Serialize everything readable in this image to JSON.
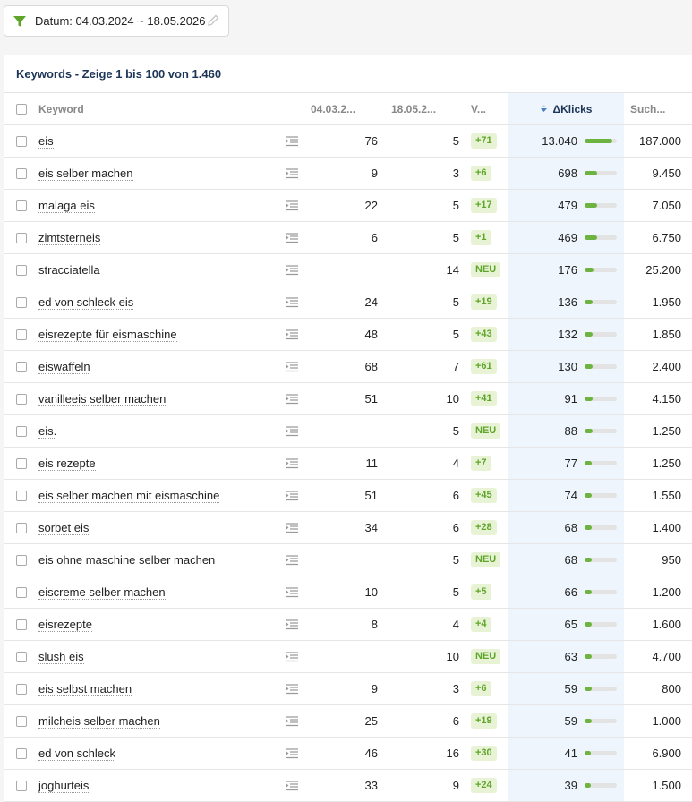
{
  "filter": {
    "label": "Datum: 04.03.2024 ~ 18.05.2026",
    "icon": "funnel-icon",
    "edit_icon": "pencil-icon",
    "accent": "#5fa52a"
  },
  "table_title": "Keywords - Zeige 1 bis 100 von 1.460",
  "columns": {
    "keyword": "Keyword",
    "date1": "04.03.2...",
    "date2": "18.05.2...",
    "change": "V...",
    "klicks": "ΔKlicks",
    "suchvolumen": "Such..."
  },
  "rows": [
    {
      "keyword": "eis",
      "d1": "76",
      "d2": "5",
      "change": "+71",
      "klicks": "13.040",
      "bar": 0.85,
      "sv": "187.000"
    },
    {
      "keyword": "eis selber machen",
      "d1": "9",
      "d2": "3",
      "change": "+6",
      "klicks": "698",
      "bar": 0.4,
      "sv": "9.450"
    },
    {
      "keyword": "malaga eis",
      "d1": "22",
      "d2": "5",
      "change": "+17",
      "klicks": "479",
      "bar": 0.38,
      "sv": "7.050"
    },
    {
      "keyword": "zimtsterneis",
      "d1": "6",
      "d2": "5",
      "change": "+1",
      "klicks": "469",
      "bar": 0.38,
      "sv": "6.750"
    },
    {
      "keyword": "stracciatella",
      "d1": "",
      "d2": "14",
      "change": "NEU",
      "klicks": "176",
      "bar": 0.28,
      "sv": "25.200"
    },
    {
      "keyword": "ed von schleck eis",
      "d1": "24",
      "d2": "5",
      "change": "+19",
      "klicks": "136",
      "bar": 0.26,
      "sv": "1.950"
    },
    {
      "keyword": "eisrezepte für eismaschine",
      "d1": "48",
      "d2": "5",
      "change": "+43",
      "klicks": "132",
      "bar": 0.26,
      "sv": "1.850"
    },
    {
      "keyword": "eiswaffeln",
      "d1": "68",
      "d2": "7",
      "change": "+61",
      "klicks": "130",
      "bar": 0.26,
      "sv": "2.400"
    },
    {
      "keyword": "vanilleeis selber machen",
      "d1": "51",
      "d2": "10",
      "change": "+41",
      "klicks": "91",
      "bar": 0.24,
      "sv": "4.150"
    },
    {
      "keyword": "eis.",
      "d1": "",
      "d2": "5",
      "change": "NEU",
      "klicks": "88",
      "bar": 0.24,
      "sv": "1.250"
    },
    {
      "keyword": "eis rezepte",
      "d1": "11",
      "d2": "4",
      "change": "+7",
      "klicks": "77",
      "bar": 0.22,
      "sv": "1.250"
    },
    {
      "keyword": "eis selber machen mit eismaschine",
      "d1": "51",
      "d2": "6",
      "change": "+45",
      "klicks": "74",
      "bar": 0.22,
      "sv": "1.550"
    },
    {
      "keyword": "sorbet eis",
      "d1": "34",
      "d2": "6",
      "change": "+28",
      "klicks": "68",
      "bar": 0.22,
      "sv": "1.400"
    },
    {
      "keyword": "eis ohne maschine selber machen",
      "d1": "",
      "d2": "5",
      "change": "NEU",
      "klicks": "68",
      "bar": 0.22,
      "sv": "950"
    },
    {
      "keyword": "eiscreme selber machen",
      "d1": "10",
      "d2": "5",
      "change": "+5",
      "klicks": "66",
      "bar": 0.22,
      "sv": "1.200"
    },
    {
      "keyword": "eisrezepte",
      "d1": "8",
      "d2": "4",
      "change": "+4",
      "klicks": "65",
      "bar": 0.22,
      "sv": "1.600"
    },
    {
      "keyword": "slush eis",
      "d1": "",
      "d2": "10",
      "change": "NEU",
      "klicks": "63",
      "bar": 0.22,
      "sv": "4.700"
    },
    {
      "keyword": "eis selbst machen",
      "d1": "9",
      "d2": "3",
      "change": "+6",
      "klicks": "59",
      "bar": 0.22,
      "sv": "800"
    },
    {
      "keyword": "milcheis selber machen",
      "d1": "25",
      "d2": "6",
      "change": "+19",
      "klicks": "59",
      "bar": 0.22,
      "sv": "1.000"
    },
    {
      "keyword": "ed von schleck",
      "d1": "46",
      "d2": "16",
      "change": "+30",
      "klicks": "41",
      "bar": 0.2,
      "sv": "6.900"
    },
    {
      "keyword": "joghurteis",
      "d1": "33",
      "d2": "9",
      "change": "+24",
      "klicks": "39",
      "bar": 0.2,
      "sv": "1.500"
    }
  ]
}
